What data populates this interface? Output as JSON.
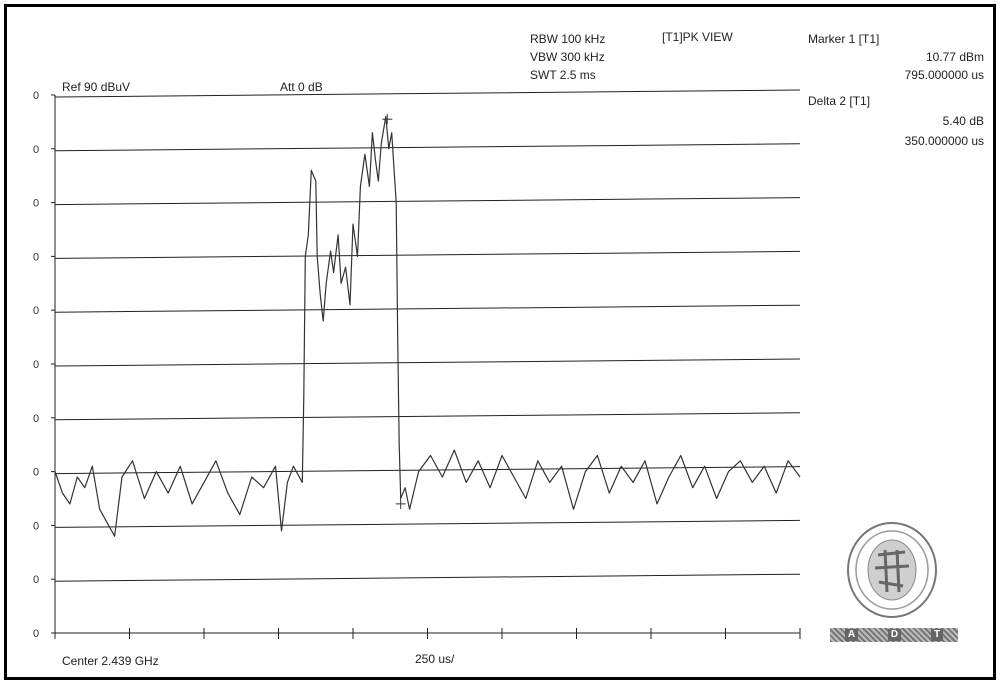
{
  "header": {
    "ref": "Ref 90 dBuV",
    "att": "Att  0 dB",
    "rbw": "RBW 100 kHz",
    "vbw": "VBW 300 kHz",
    "swt": "SWT 2.5 ms",
    "trace_mode": "[T1]PK VIEW"
  },
  "markers": {
    "marker1_label": "Marker 1 [T1]",
    "marker1_level": "10.77 dBm",
    "marker1_time": "795.000000 us",
    "delta2_label": "Delta 2 [T1]",
    "delta2_level": "5.40 dB",
    "delta2_time": "350.000000 us"
  },
  "footer": {
    "center": "Center 2.439 GHz",
    "span_per_div": "250 us/"
  },
  "logo": {
    "letters": [
      "A",
      "D",
      "T"
    ]
  },
  "colors": {
    "trace": "#333333",
    "grid": "#222222",
    "frame": "#000000"
  },
  "chart_data": {
    "type": "line",
    "x_unit": "us",
    "x_range": [
      0,
      2500
    ],
    "y_range": [
      -10,
      90
    ],
    "y_tick_labels": [
      "0",
      "0",
      "0",
      "0",
      "0",
      "0",
      "0",
      "0",
      "0",
      "0",
      "0"
    ],
    "grid": "horizontal",
    "series": [
      {
        "values": [
          [
            0,
            20
          ],
          [
            25,
            16
          ],
          [
            50,
            14
          ],
          [
            75,
            19
          ],
          [
            100,
            17
          ],
          [
            125,
            21
          ],
          [
            150,
            13
          ],
          [
            200,
            8
          ],
          [
            225,
            19
          ],
          [
            260,
            22
          ],
          [
            300,
            15
          ],
          [
            340,
            20
          ],
          [
            380,
            16
          ],
          [
            420,
            21
          ],
          [
            460,
            14
          ],
          [
            500,
            18
          ],
          [
            540,
            22
          ],
          [
            580,
            16
          ],
          [
            620,
            12
          ],
          [
            660,
            19
          ],
          [
            700,
            17
          ],
          [
            740,
            21
          ],
          [
            760,
            9
          ],
          [
            780,
            18
          ],
          [
            800,
            21
          ],
          [
            830,
            18
          ],
          [
            835,
            34
          ],
          [
            840,
            60
          ],
          [
            850,
            64
          ],
          [
            860,
            76
          ],
          [
            875,
            74
          ],
          [
            880,
            60
          ],
          [
            890,
            53
          ],
          [
            900,
            48
          ],
          [
            910,
            55
          ],
          [
            925,
            61
          ],
          [
            935,
            57
          ],
          [
            950,
            64
          ],
          [
            960,
            55
          ],
          [
            975,
            58
          ],
          [
            990,
            51
          ],
          [
            1000,
            66
          ],
          [
            1015,
            60
          ],
          [
            1025,
            73
          ],
          [
            1040,
            79
          ],
          [
            1055,
            73
          ],
          [
            1065,
            83
          ],
          [
            1075,
            78
          ],
          [
            1085,
            74
          ],
          [
            1095,
            81
          ],
          [
            1110,
            86
          ],
          [
            1120,
            80
          ],
          [
            1130,
            83
          ],
          [
            1145,
            70
          ],
          [
            1150,
            45
          ],
          [
            1155,
            25
          ],
          [
            1160,
            15
          ],
          [
            1175,
            17
          ],
          [
            1190,
            13
          ],
          [
            1220,
            20
          ],
          [
            1260,
            23
          ],
          [
            1300,
            19
          ],
          [
            1340,
            24
          ],
          [
            1380,
            18
          ],
          [
            1420,
            22
          ],
          [
            1460,
            17
          ],
          [
            1500,
            23
          ],
          [
            1540,
            19
          ],
          [
            1580,
            15
          ],
          [
            1620,
            22
          ],
          [
            1660,
            18
          ],
          [
            1700,
            21
          ],
          [
            1740,
            13
          ],
          [
            1780,
            20
          ],
          [
            1820,
            23
          ],
          [
            1860,
            16
          ],
          [
            1900,
            21
          ],
          [
            1940,
            18
          ],
          [
            1980,
            22
          ],
          [
            2020,
            14
          ],
          [
            2060,
            19
          ],
          [
            2100,
            23
          ],
          [
            2140,
            17
          ],
          [
            2180,
            21
          ],
          [
            2220,
            15
          ],
          [
            2260,
            20
          ],
          [
            2300,
            22
          ],
          [
            2340,
            18
          ],
          [
            2380,
            21
          ],
          [
            2420,
            16
          ],
          [
            2460,
            22
          ],
          [
            2500,
            19
          ]
        ]
      }
    ],
    "markers": [
      {
        "label": "1",
        "x": 1115,
        "y": 85.5
      },
      {
        "label": "2",
        "x": 1160,
        "y": 14
      }
    ]
  }
}
